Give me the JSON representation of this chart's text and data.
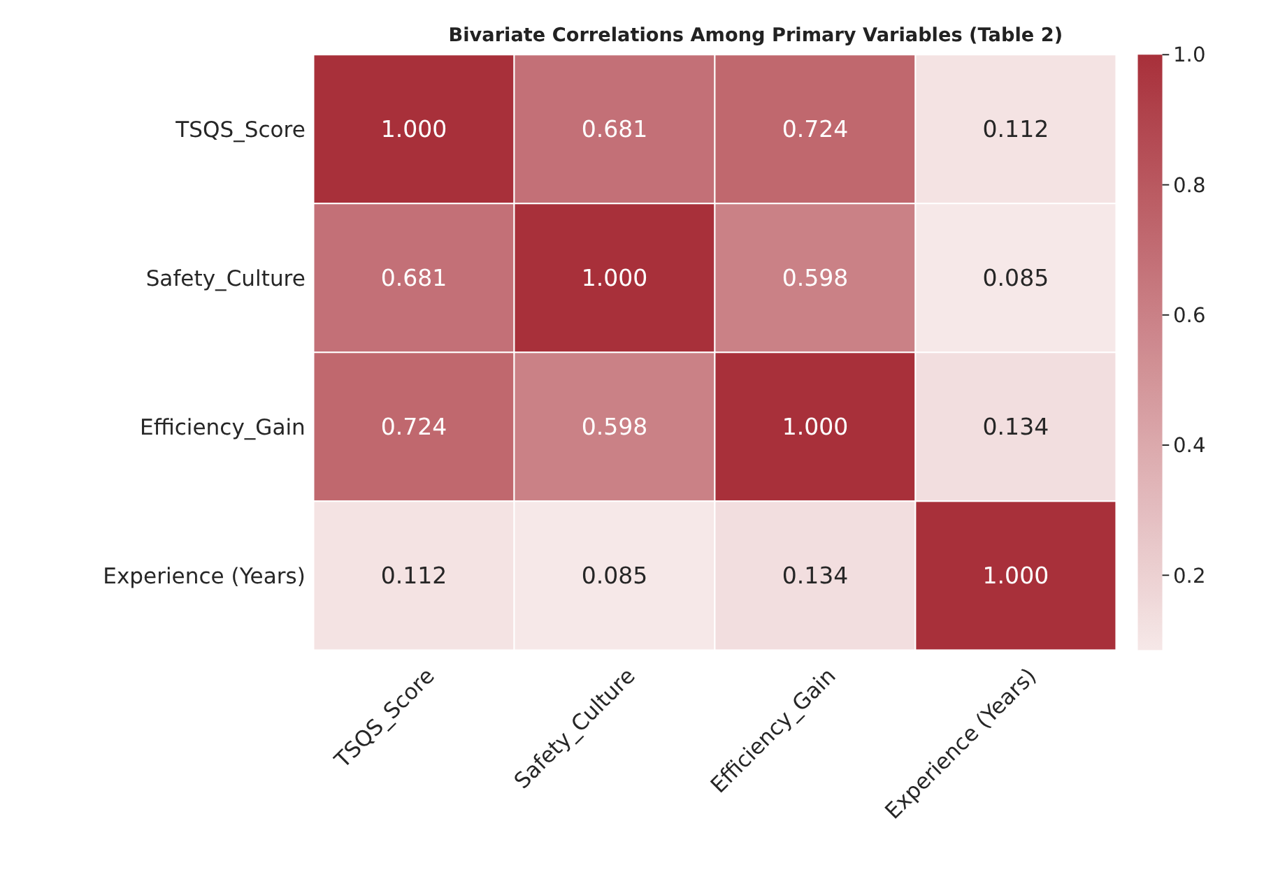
{
  "chart_data": {
    "type": "heatmap",
    "title": "Bivariate Correlations Among Primary Variables (Table 2)",
    "categories": [
      "TSQS_Score",
      "Safety_Culture",
      "Efficiency_Gain",
      "Experience (Years)"
    ],
    "y_categories": [
      "TSQS_Score",
      "Safety_Culture",
      "Efficiency_Gain",
      "Experience (Years)"
    ],
    "cells": [
      [
        1.0,
        0.681,
        0.724,
        0.112
      ],
      [
        0.681,
        1.0,
        0.598,
        0.085
      ],
      [
        0.724,
        0.598,
        1.0,
        0.134
      ],
      [
        0.112,
        0.085,
        0.134,
        1.0
      ]
    ],
    "cell_labels": [
      [
        "1.000",
        "0.681",
        "0.724",
        "0.112"
      ],
      [
        "0.681",
        "1.000",
        "0.598",
        "0.085"
      ],
      [
        "0.724",
        "0.598",
        "1.000",
        "0.134"
      ],
      [
        "0.112",
        "0.085",
        "0.134",
        "1.000"
      ]
    ],
    "clim": [
      0.085,
      1.0
    ],
    "cticks": [
      {
        "value": 0.2,
        "label": "0.2"
      },
      {
        "value": 0.4,
        "label": "0.4"
      },
      {
        "value": 0.6,
        "label": "0.6"
      },
      {
        "value": 0.8,
        "label": "0.8"
      },
      {
        "value": 1.0,
        "label": "1.0"
      }
    ]
  }
}
